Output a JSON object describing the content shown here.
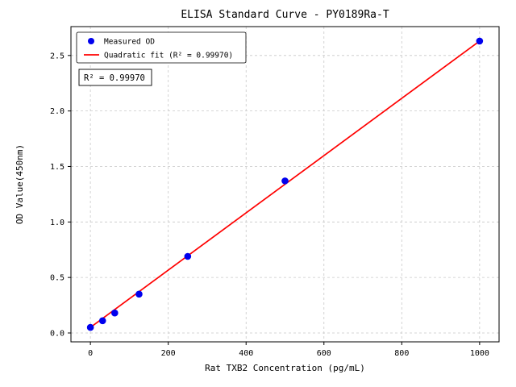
{
  "figure": {
    "background": "#ffffff"
  },
  "chart_data": {
    "type": "scatter",
    "title": "ELISA Standard Curve - PY0189Ra-T",
    "xlabel": "Rat TXB2 Concentration (pg/mL)",
    "ylabel": "OD Value(450nm)",
    "xlim": [
      -50,
      1050
    ],
    "ylim": [
      -0.08,
      2.76
    ],
    "xticks": [
      0,
      200,
      400,
      600,
      800,
      1000
    ],
    "yticks": [
      0.0,
      0.5,
      1.0,
      1.5,
      2.0,
      2.5
    ],
    "grid": true,
    "grid_style": "dashed",
    "legend_position": "upper-left",
    "series": [
      {
        "name": "Measured OD",
        "type": "scatter",
        "color": "#0000ee",
        "x": [
          0,
          31.25,
          62.5,
          125,
          250,
          500,
          1000
        ],
        "y": [
          0.05,
          0.11,
          0.18,
          0.35,
          0.69,
          1.37,
          2.63
        ]
      },
      {
        "name": "Quadratic fit (R² = 0.99970)",
        "type": "line",
        "color": "#ff0000",
        "x": [
          0,
          1000
        ],
        "y": [
          0.05,
          2.63
        ]
      }
    ],
    "annotation": "R² = 0.99970",
    "colors": {
      "points": "#0000ee",
      "fit_line": "#ff0000",
      "grid": "#c8c8c8",
      "frame": "#000000"
    }
  }
}
